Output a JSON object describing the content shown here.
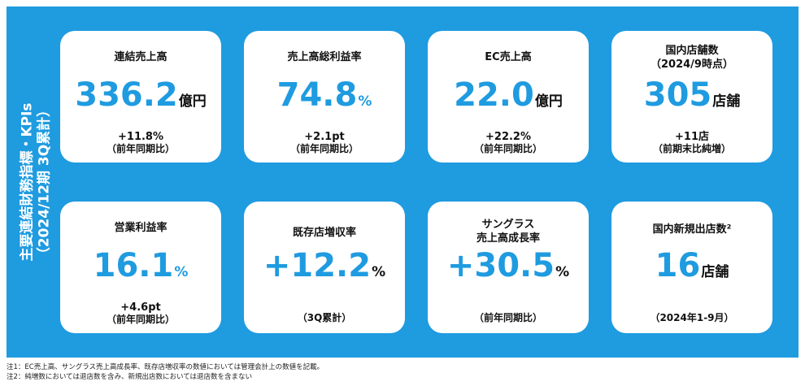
{
  "side_title": {
    "line1": "主要連結財務指標・KPIs",
    "line2": "（2024/12期 3Q累計）"
  },
  "cards": [
    {
      "label1": "連結売上高",
      "label2": "",
      "value": "336.2",
      "unit": "億円",
      "delta": "+11.8%",
      "sub": "（前年同期比）"
    },
    {
      "label1": "売上高総利益率",
      "label2": "",
      "value": "74.8",
      "unit": "%",
      "delta": "+2.1pt",
      "sub": "（前年同期比）"
    },
    {
      "label1": "EC売上高",
      "label2": "",
      "value": "22.0",
      "unit": "億円",
      "delta": "+22.2%",
      "sub": "（前年同期比）"
    },
    {
      "label1": "国内店舗数",
      "label2": "（2024/9時点）",
      "value": "305",
      "unit": "店舗",
      "delta": "+11店",
      "sub": "（前期末比純増）"
    },
    {
      "label1": "営業利益率",
      "label2": "",
      "value": "16.1",
      "unit": "%",
      "delta": "+4.6pt",
      "sub": "（前年同期比）"
    },
    {
      "label1": "既存店増収率",
      "label2": "",
      "value": "+12.2",
      "unit": "%",
      "note": "（3Q累計）"
    },
    {
      "label1": "サングラス",
      "label2": "売上高成長率",
      "value": "+30.5",
      "unit": "%",
      "note": "（前年同期比）"
    },
    {
      "label1": "国内新規出店数²",
      "label2": "",
      "value": "16",
      "unit": "店舗",
      "note": "（2024年1-9月）"
    }
  ],
  "footnotes": [
    "注1：EC売上高、サングラス売上高成長率、既存店増収率の数値においては管理会計上の数値を記載。",
    "注2：純増数においては退店数を含み、新規出店数においては退店数を含まない"
  ]
}
